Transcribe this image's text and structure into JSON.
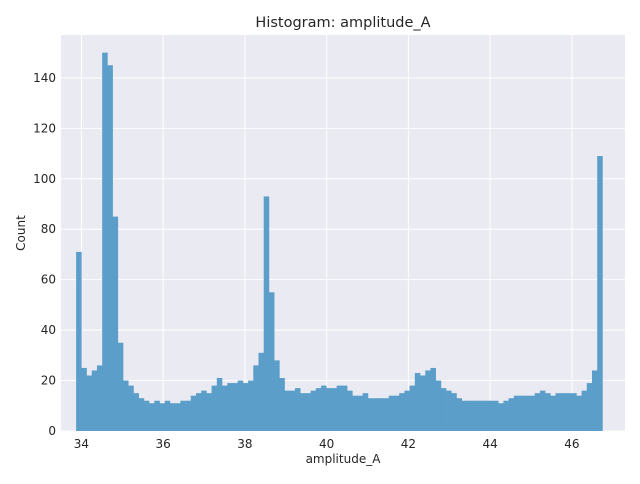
{
  "chart_data": {
    "type": "bar",
    "title": "Histogram: amplitude_A",
    "xlabel": "amplitude_A",
    "ylabel": "Count",
    "xlim": [
      33.5,
      47.3
    ],
    "ylim": [
      0,
      157
    ],
    "x_ticks": [
      34,
      36,
      38,
      40,
      42,
      44,
      46
    ],
    "y_ticks": [
      0,
      20,
      40,
      60,
      80,
      100,
      120,
      140
    ],
    "grid": true,
    "bin_start": 33.87,
    "bin_width": 0.1275,
    "values": [
      71,
      25,
      22,
      24,
      26,
      150,
      145,
      85,
      35,
      20,
      18,
      15,
      13,
      12,
      11,
      12,
      11,
      12,
      11,
      11,
      12,
      12,
      14,
      15,
      16,
      15,
      18,
      21,
      18,
      19,
      19,
      20,
      19,
      20,
      26,
      31,
      93,
      55,
      28,
      21,
      16,
      16,
      17,
      15,
      15,
      16,
      17,
      18,
      17,
      17,
      18,
      18,
      16,
      14,
      14,
      15,
      13,
      13,
      13,
      13,
      14,
      14,
      15,
      16,
      18,
      23,
      22,
      24,
      25,
      20,
      17,
      16,
      15,
      13,
      12,
      12,
      12,
      12,
      12,
      12,
      12,
      11,
      12,
      13,
      14,
      14,
      14,
      14,
      15,
      16,
      15,
      14,
      15,
      15,
      15,
      15,
      14,
      16,
      19,
      24,
      109
    ],
    "bar_color": "#5a9ec9",
    "background_color": "#eaeaf2",
    "grid_color": "#ffffff"
  }
}
